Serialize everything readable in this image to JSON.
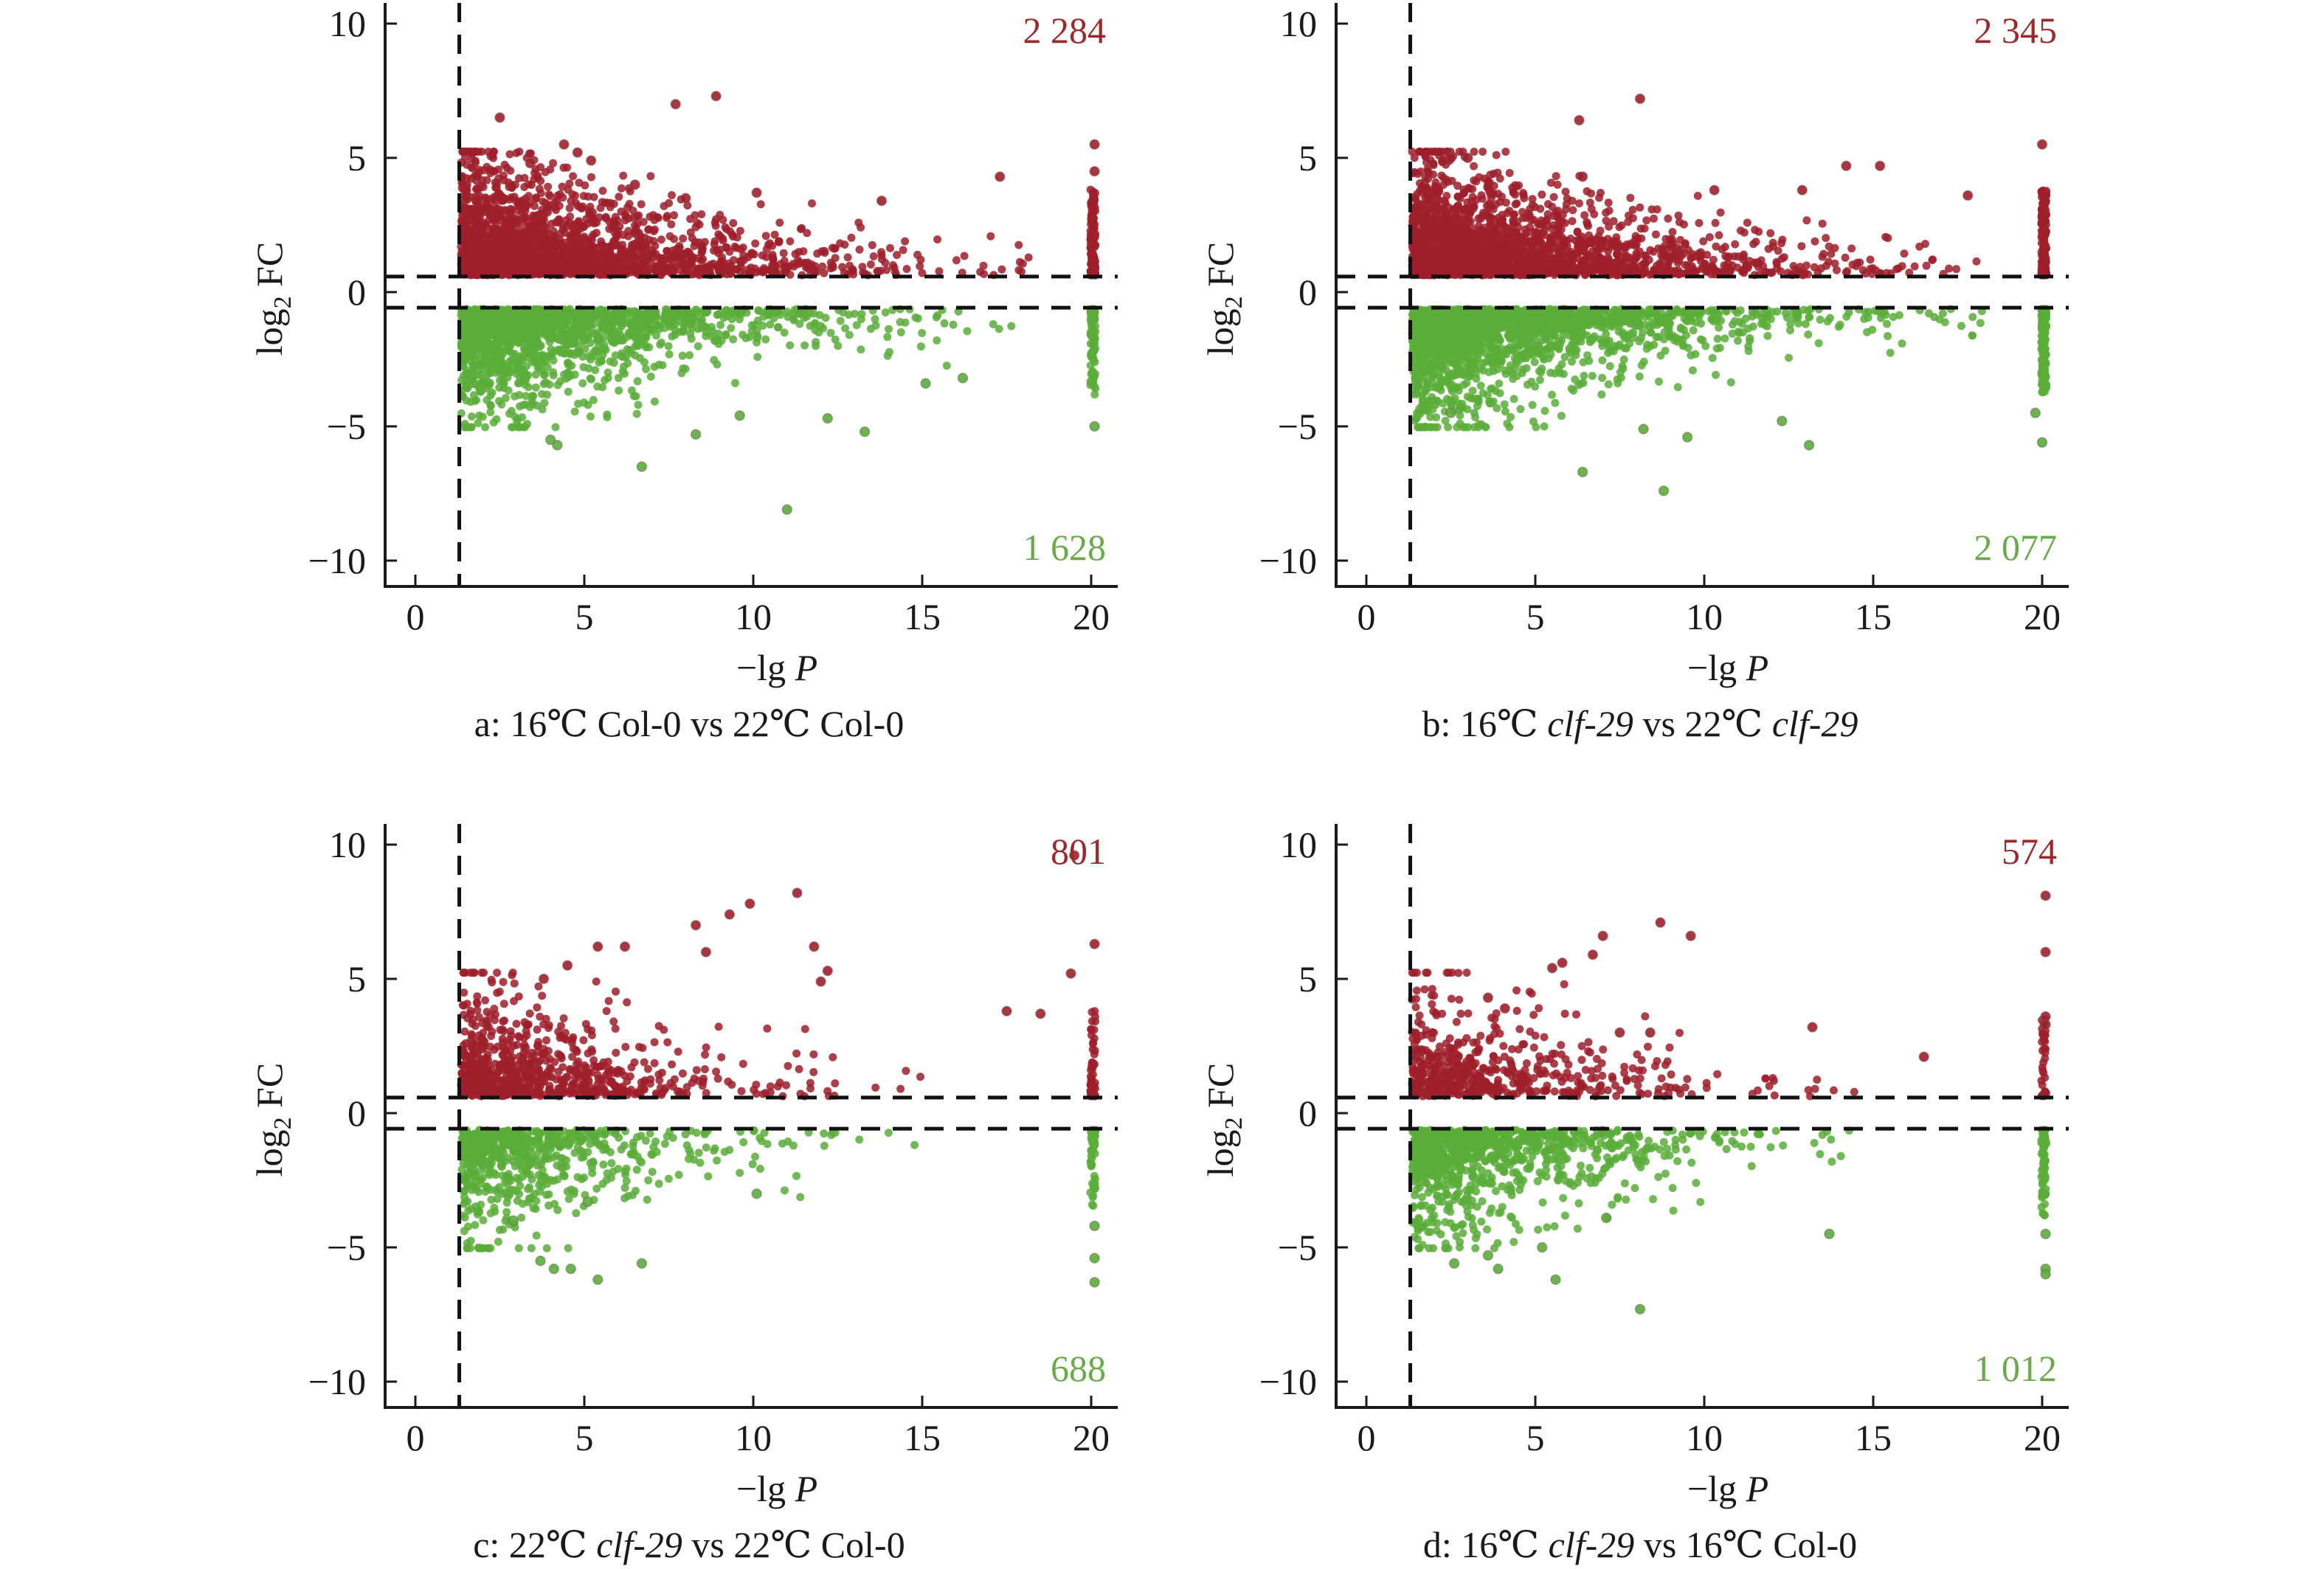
{
  "figure": {
    "colors": {
      "up": "#9e1f2a",
      "down": "#5aad3a",
      "up_label": "#9b2a2a",
      "down_label": "#6aaa4a",
      "axis": "#1a1a1a",
      "threshold": "#111111"
    }
  },
  "chart_data": [
    {
      "type": "scatter",
      "panel": "a",
      "caption": {
        "prefix": "a: 16℃ Col-0 vs 22℃ Col-0",
        "parts": [
          {
            "text": "a: 16℃ Col-0 vs 22℃ Col-0",
            "italic": false
          }
        ]
      },
      "xlabel": "−lg P",
      "ylabel": "log2 FC",
      "xlim": [
        -1,
        21
      ],
      "ylim": [
        -11,
        10.5
      ],
      "xticks": [
        0,
        5,
        10,
        15,
        20
      ],
      "yticks": [
        10,
        5,
        0,
        -5,
        -10
      ],
      "ytick_labels": [
        "10",
        "5",
        "0",
        "−5",
        "−10"
      ],
      "thresholds": {
        "x": 1.3,
        "y": [
          0.58,
          -0.58
        ]
      },
      "grid": false,
      "counts": {
        "up": 2284,
        "down": 1628,
        "up_label": "2 284",
        "down_label": "1 628"
      },
      "series": [
        {
          "name": "up-regulated",
          "color_key": "up",
          "n": 2284,
          "notable_points": [
            [
              2.5,
              6.5
            ],
            [
              4.4,
              5.5
            ],
            [
              4.8,
              5.2
            ],
            [
              5.2,
              4.9
            ],
            [
              7.7,
              7.0
            ],
            [
              8.9,
              7.3
            ],
            [
              10.1,
              3.7
            ],
            [
              17.3,
              4.3
            ],
            [
              20.1,
              5.5
            ],
            [
              20.1,
              4.5
            ],
            [
              6.5,
              4.0
            ],
            [
              3.4,
              4.8
            ],
            [
              8.0,
              3.5
            ],
            [
              13.8,
              3.4
            ]
          ]
        },
        {
          "name": "down-regulated",
          "color_key": "down",
          "n": 1628,
          "notable_points": [
            [
              6.7,
              -6.5
            ],
            [
              11.0,
              -8.1
            ],
            [
              4.2,
              -5.7
            ],
            [
              4.0,
              -5.5
            ],
            [
              13.3,
              -5.2
            ],
            [
              20.1,
              -5.0
            ],
            [
              8.3,
              -5.3
            ],
            [
              9.6,
              -4.6
            ],
            [
              12.2,
              -4.7
            ],
            [
              15.1,
              -3.4
            ],
            [
              16.2,
              -3.2
            ]
          ]
        }
      ]
    },
    {
      "type": "scatter",
      "panel": "b",
      "caption": {
        "parts": [
          {
            "text": "b: 16℃ ",
            "italic": false
          },
          {
            "text": "clf-29",
            "italic": true
          },
          {
            "text": " vs 22℃ ",
            "italic": false
          },
          {
            "text": "clf-29",
            "italic": true
          }
        ]
      },
      "xlabel": "−lg P",
      "ylabel": "log2 FC",
      "xlim": [
        -1,
        21
      ],
      "ylim": [
        -11,
        10.5
      ],
      "xticks": [
        0,
        5,
        10,
        15,
        20
      ],
      "yticks": [
        10,
        5,
        0,
        -5,
        -10
      ],
      "ytick_labels": [
        "10",
        "5",
        "0",
        "−5",
        "−10"
      ],
      "thresholds": {
        "x": 1.3,
        "y": [
          0.58,
          -0.58
        ]
      },
      "grid": false,
      "counts": {
        "up": 2345,
        "down": 2077,
        "up_label": "2 345",
        "down_label": "2 077"
      },
      "series": [
        {
          "name": "up-regulated",
          "color_key": "up",
          "n": 2345,
          "notable_points": [
            [
              6.3,
              6.4
            ],
            [
              8.1,
              7.2
            ],
            [
              2.5,
              5.0
            ],
            [
              3.0,
              5.0
            ],
            [
              14.2,
              4.7
            ],
            [
              15.2,
              4.7
            ],
            [
              20.0,
              5.5
            ],
            [
              10.3,
              3.8
            ],
            [
              6.4,
              4.3
            ],
            [
              12.9,
              3.8
            ],
            [
              17.8,
              3.6
            ]
          ]
        },
        {
          "name": "down-regulated",
          "color_key": "down",
          "n": 2077,
          "notable_points": [
            [
              6.4,
              -6.7
            ],
            [
              8.8,
              -7.4
            ],
            [
              13.1,
              -5.7
            ],
            [
              20.0,
              -5.6
            ],
            [
              9.5,
              -5.4
            ],
            [
              2.5,
              -4.5
            ],
            [
              12.3,
              -4.8
            ],
            [
              8.2,
              -5.1
            ],
            [
              19.8,
              -4.5
            ]
          ]
        }
      ]
    },
    {
      "type": "scatter",
      "panel": "c",
      "caption": {
        "parts": [
          {
            "text": "c: 22℃ ",
            "italic": false
          },
          {
            "text": "clf-29",
            "italic": true
          },
          {
            "text": " vs 22℃ Col-0",
            "italic": false
          }
        ]
      },
      "xlabel": "−lg P",
      "ylabel": "log2 FC",
      "xlim": [
        -1,
        21
      ],
      "ylim": [
        -11,
        10.5
      ],
      "xticks": [
        0,
        5,
        10,
        15,
        20
      ],
      "yticks": [
        10,
        5,
        0,
        -5,
        -10
      ],
      "ytick_labels": [
        "10",
        "5",
        "0",
        "−5",
        "−10"
      ],
      "thresholds": {
        "x": 1.3,
        "y": [
          0.58,
          -0.58
        ]
      },
      "grid": false,
      "counts": {
        "up": 801,
        "down": 688,
        "up_label": "801",
        "down_label": "688"
      },
      "series": [
        {
          "name": "up-regulated",
          "color_key": "up",
          "n": 801,
          "notable_points": [
            [
              11.3,
              8.2
            ],
            [
              9.9,
              7.8
            ],
            [
              9.3,
              7.4
            ],
            [
              8.3,
              7.0
            ],
            [
              8.6,
              6.0
            ],
            [
              11.8,
              6.2
            ],
            [
              6.2,
              6.2
            ],
            [
              5.4,
              6.2
            ],
            [
              19.5,
              9.6
            ],
            [
              20.1,
              6.3
            ],
            [
              19.4,
              5.2
            ],
            [
              12.0,
              4.9
            ],
            [
              12.2,
              5.3
            ],
            [
              17.5,
              3.8
            ],
            [
              18.5,
              3.7
            ],
            [
              4.5,
              5.5
            ],
            [
              3.8,
              5.0
            ]
          ]
        },
        {
          "name": "down-regulated",
          "color_key": "down",
          "n": 688,
          "notable_points": [
            [
              3.7,
              -5.5
            ],
            [
              4.1,
              -5.8
            ],
            [
              4.6,
              -5.8
            ],
            [
              5.4,
              -6.2
            ],
            [
              6.7,
              -5.6
            ],
            [
              20.1,
              -5.4
            ],
            [
              20.1,
              -6.3
            ],
            [
              20.1,
              -4.2
            ],
            [
              2.9,
              -4.0
            ],
            [
              10.1,
              -3.0
            ],
            [
              5.1,
              -3.3
            ]
          ]
        }
      ]
    },
    {
      "type": "scatter",
      "panel": "d",
      "caption": {
        "parts": [
          {
            "text": "d: 16℃ ",
            "italic": false
          },
          {
            "text": "clf-29",
            "italic": true
          },
          {
            "text": " vs 16℃ Col-0",
            "italic": false
          }
        ]
      },
      "xlabel": "−lg P",
      "ylabel": "log2 FC",
      "xlim": [
        -1,
        21
      ],
      "ylim": [
        -11,
        10.5
      ],
      "xticks": [
        0,
        5,
        10,
        15,
        20
      ],
      "yticks": [
        10,
        5,
        0,
        -5,
        -10
      ],
      "ytick_labels": [
        "10",
        "5",
        "0",
        "−5",
        "−10"
      ],
      "thresholds": {
        "x": 1.3,
        "y": [
          0.58,
          -0.58
        ]
      },
      "grid": false,
      "counts": {
        "up": 574,
        "down": 1012,
        "up_label": "574",
        "down_label": "1 012"
      },
      "series": [
        {
          "name": "up-regulated",
          "color_key": "up",
          "n": 574,
          "notable_points": [
            [
              8.7,
              7.1
            ],
            [
              9.6,
              6.6
            ],
            [
              7.0,
              6.6
            ],
            [
              6.7,
              5.9
            ],
            [
              5.8,
              5.6
            ],
            [
              5.5,
              5.4
            ],
            [
              20.1,
              8.1
            ],
            [
              20.1,
              6.0
            ],
            [
              20.1,
              3.6
            ],
            [
              20.1,
              3.3
            ],
            [
              13.2,
              3.2
            ],
            [
              16.5,
              2.1
            ],
            [
              4.1,
              3.9
            ],
            [
              3.6,
              4.3
            ],
            [
              7.5,
              3.0
            ],
            [
              8.4,
              3.0
            ]
          ]
        },
        {
          "name": "down-regulated",
          "color_key": "down",
          "n": 1012,
          "notable_points": [
            [
              8.1,
              -7.3
            ],
            [
              5.6,
              -6.2
            ],
            [
              3.6,
              -5.3
            ],
            [
              3.9,
              -5.8
            ],
            [
              2.6,
              -5.6
            ],
            [
              13.7,
              -4.5
            ],
            [
              20.1,
              -5.8
            ],
            [
              20.1,
              -6.0
            ],
            [
              20.1,
              -4.5
            ],
            [
              5.2,
              -5.0
            ],
            [
              7.1,
              -3.9
            ]
          ]
        }
      ]
    }
  ]
}
